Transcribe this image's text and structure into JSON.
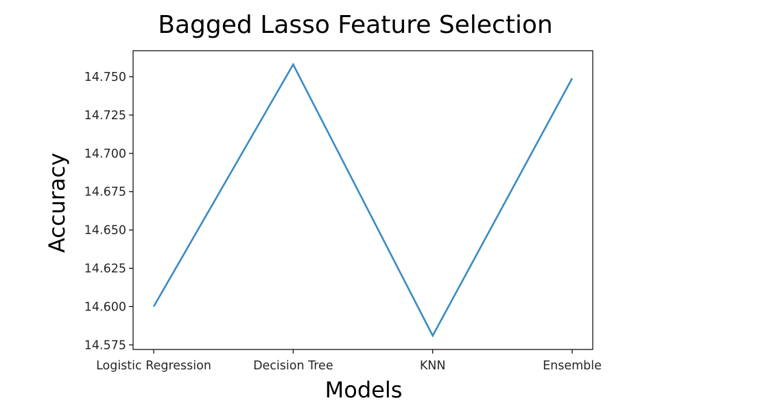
{
  "chart_data": {
    "type": "line",
    "title": "Bagged Lasso Feature Selection",
    "xlabel": "Models",
    "ylabel": "Accuracy",
    "categories": [
      "Logistic Regression",
      "Decision Tree",
      "KNN",
      "Ensemble"
    ],
    "series": [
      {
        "values": [
          14.6,
          14.758,
          14.581,
          14.749
        ],
        "color": "#3a8ac2"
      }
    ],
    "yticks": [
      14.575,
      14.6,
      14.625,
      14.65,
      14.675,
      14.7,
      14.725,
      14.75
    ],
    "ytick_labels": [
      "14.575",
      "14.600",
      "14.625",
      "14.650",
      "14.675",
      "14.700",
      "14.725",
      "14.750"
    ],
    "ylim": [
      14.572,
      14.767
    ],
    "grid": false,
    "legend": "none"
  }
}
